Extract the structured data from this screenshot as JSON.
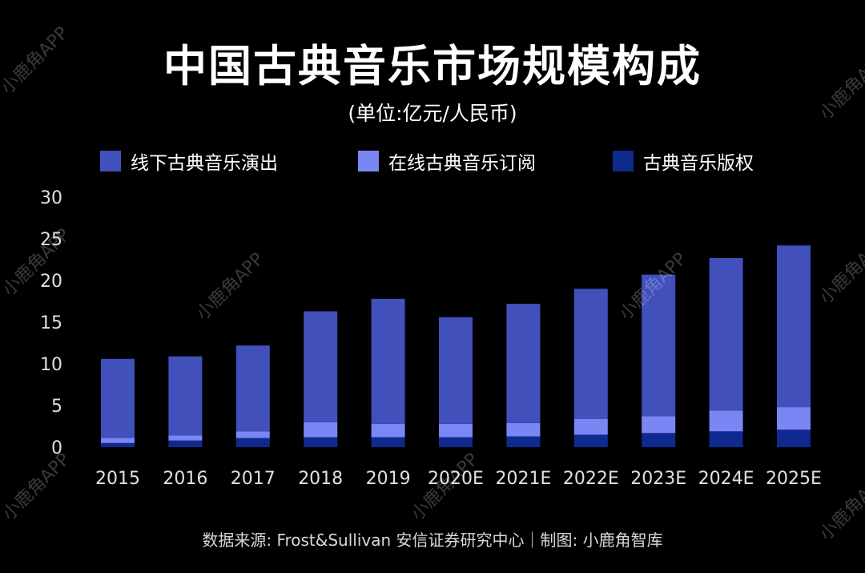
{
  "title": "中国古典音乐市场规模构成",
  "subtitle": "(单位:亿元/人民币)",
  "source": "数据来源: Frost&Sullivan 安信证券研究中心｜制图: 小鹿角智库",
  "watermark": "小鹿角APP",
  "colors": {
    "offline": "#4150bb",
    "online": "#7b86f5",
    "copyright": "#0f2a8e",
    "text": "#ffffff",
    "axis_text": "#e0e0e0"
  },
  "chart_data": {
    "type": "bar",
    "stacked": true,
    "categories": [
      "2015",
      "2016",
      "2017",
      "2018",
      "2019",
      "2020E",
      "2021E",
      "2022E",
      "2023E",
      "2024E",
      "2025E"
    ],
    "series": [
      {
        "name": "古典音乐版权",
        "values": [
          0.5,
          0.8,
          1.1,
          1.2,
          1.2,
          1.2,
          1.3,
          1.5,
          1.7,
          1.9,
          2.1
        ]
      },
      {
        "name": "在线古典音乐订阅",
        "values": [
          0.6,
          0.6,
          0.8,
          1.8,
          1.6,
          1.6,
          1.6,
          1.9,
          2.0,
          2.5,
          2.7
        ]
      },
      {
        "name": "线下古典音乐演出",
        "values": [
          9.5,
          9.5,
          10.3,
          13.3,
          15.0,
          12.8,
          14.3,
          15.6,
          17.0,
          18.3,
          19.4
        ]
      }
    ],
    "yticks": [
      0,
      5,
      10,
      15,
      20,
      25,
      30
    ],
    "ylim": [
      0,
      30
    ],
    "grid": false,
    "legend": [
      "线下古典音乐演出",
      "在线古典音乐订阅",
      "古典音乐版权"
    ],
    "legend_position": "top"
  }
}
